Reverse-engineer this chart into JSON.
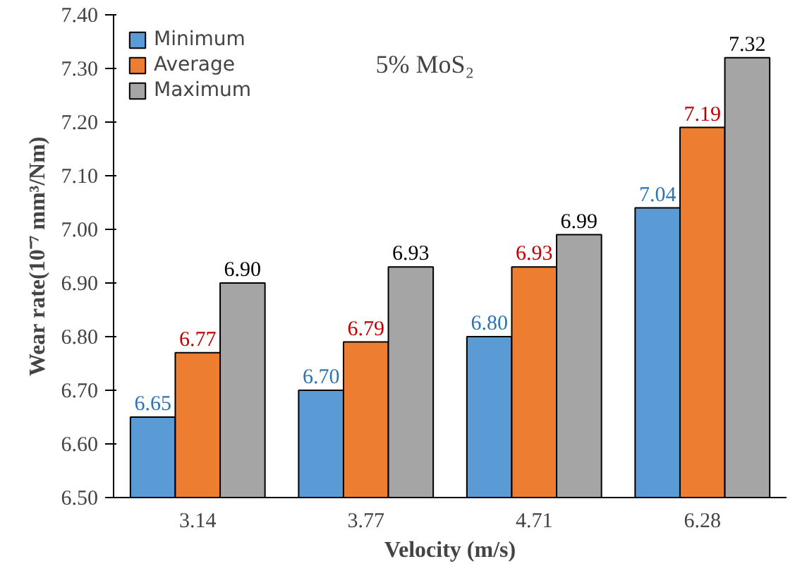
{
  "chart_data": {
    "type": "bar",
    "xlabel": "Velocity (m/s)",
    "ylabel": "Wear rate(10⁻⁷ mm³/Nm)",
    "categories": [
      "3.14",
      "3.77",
      "4.71",
      "6.28"
    ],
    "series": [
      {
        "name": "Minimum",
        "color": "#5b9bd5",
        "values": [
          6.65,
          6.7,
          6.8,
          7.04
        ],
        "value_labels": [
          "6.65",
          "6.70",
          "6.80",
          "7.04"
        ]
      },
      {
        "name": "Average",
        "color": "#ed7d31",
        "values": [
          6.77,
          6.79,
          6.93,
          7.19
        ],
        "value_labels": [
          "6.77",
          "6.79",
          "6.93",
          "7.19"
        ]
      },
      {
        "name": "Maximum",
        "color": "#a5a5a5",
        "values": [
          6.9,
          6.93,
          6.99,
          7.32
        ],
        "value_labels": [
          "6.90",
          "6.93",
          "6.99",
          "7.32"
        ]
      }
    ],
    "ylim": [
      6.5,
      7.4
    ],
    "yticks": [
      {
        "value": 6.5,
        "label": "6.50"
      },
      {
        "value": 6.6,
        "label": "6.60"
      },
      {
        "value": 6.7,
        "label": "6.70"
      },
      {
        "value": 6.8,
        "label": "6.80"
      },
      {
        "value": 6.9,
        "label": "6.90"
      },
      {
        "value": 7.0,
        "label": "7.00"
      },
      {
        "value": 7.1,
        "label": "7.10"
      },
      {
        "value": 7.2,
        "label": "7.20"
      },
      {
        "value": 7.3,
        "label": "7.30"
      },
      {
        "value": 7.4,
        "label": "7.40"
      }
    ],
    "annotations": [
      "5% MoS₂"
    ],
    "legend": "top left",
    "grid": false
  }
}
